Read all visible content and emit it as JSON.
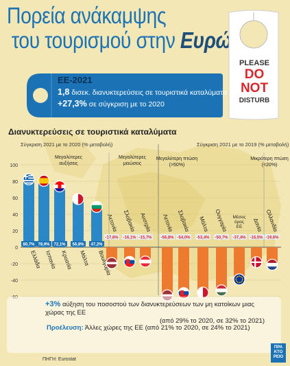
{
  "title": {
    "line1": "Πορεία ανάκαμψης",
    "line2_a": "του τουρισμού στην",
    "line2_b": "Ευρώπη"
  },
  "door_hanger": {
    "please": "PLEASE",
    "do": "DO",
    "not": "NOT",
    "disturb": "DISTURB"
  },
  "eu_box": {
    "title": "ΕΕ-2021",
    "line1_value": "1,8",
    "line1_text": "δισεκ. διανυκτερεύσεις σε τουριστικά καταλύματα",
    "line2_value": "+27,3%",
    "line2_text": "σε σύγκριση με το 2020"
  },
  "section_title": "Διανυκτερεύσεις σε τουριστικά καταλύματα",
  "subtitle_left": "Σύγκριση 2021 με το 2020 (% μεταβολή)",
  "subtitle_right": "Σύγκριση 2021 με το 2019 (% μεταβολή)",
  "colors": {
    "positive": "#2a87c8",
    "negative": "#ee7a2f",
    "title": "#1b73b5"
  },
  "chart_data": {
    "type": "bar",
    "ylim": [
      -70,
      110
    ],
    "yticks": [
      100,
      80,
      60,
      40,
      20,
      0,
      -20,
      -40,
      -60
    ],
    "groups": [
      {
        "label": "Μεγαλύτερες αυξήσεις",
        "comparison": "2021 vs 2020"
      },
      {
        "label": "Μεγαλύτερες μειώσεις",
        "comparison": "2021 vs 2020"
      },
      {
        "label": "Μεγαλύτερη πτώση (>50%)",
        "comparison": "2021 vs 2019"
      },
      {
        "label": "Μικρότερη πτώση (<20%)",
        "comparison": "2021 vs 2019"
      }
    ],
    "bars": [
      {
        "country": "Ελλάδα",
        "value": 80.7,
        "label": "80,7%",
        "flag": "greece",
        "group": 0
      },
      {
        "country": "Ισπανία",
        "value": 78.9,
        "label": "78,9%",
        "flag": "spain",
        "group": 0
      },
      {
        "country": "Κροατία",
        "value": 72.1,
        "label": "72,1%",
        "flag": "croatia",
        "group": 0
      },
      {
        "country": "Μάλτα",
        "value": 56.8,
        "label": "56,8%",
        "flag": "malta",
        "group": 0
      },
      {
        "country": "Βουλγαρία",
        "value": 47.2,
        "label": "47,2%",
        "flag": "bulgaria",
        "group": 0
      },
      {
        "country": "Λετονία",
        "value": -17.6,
        "label": "-17,6%",
        "flag": "latvia",
        "group": 1
      },
      {
        "country": "Σλοβακία",
        "value": -16.1,
        "label": "-16,1%",
        "flag": "slovakia",
        "group": 1
      },
      {
        "country": "Αυστρία",
        "value": -15.7,
        "label": "-15,7%",
        "flag": "austria",
        "group": 1
      },
      {
        "country": "Λετονία",
        "value": -56.8,
        "label": "-56,8%",
        "flag": "latvia",
        "group": 2
      },
      {
        "country": "Σλοβακία",
        "value": -54.0,
        "label": "-54,0%",
        "flag": "slovakia",
        "group": 2
      },
      {
        "country": "Μάλτα",
        "value": -53.4,
        "label": "-53,4%",
        "flag": "malta",
        "group": 2
      },
      {
        "country": "Ουγγαρία",
        "value": -50.7,
        "label": "-50,7%",
        "flag": "hungary",
        "group": 2
      },
      {
        "country": "Μέσος όρος ΕΕ",
        "value": -37.4,
        "label": "-37,4%",
        "flag": "eu",
        "group": 2
      },
      {
        "country": "Δανία",
        "value": -16.5,
        "label": "-16,5%",
        "flag": "denmark",
        "group": 3
      },
      {
        "country": "Ολλανδία",
        "value": -19.6,
        "label": "-19,6%",
        "flag": "netherlands",
        "group": 3
      }
    ]
  },
  "notes": {
    "n1_value": "+3%",
    "n1_text": "αύξηση του ποσοστού των διανυκτερεύσεων των μη κατοίκων μιας χώρας της ΕΕ",
    "n1_line2": "(από 29% το 2020, σε 32% το 2021)",
    "n2_label": "Προέλευση:",
    "n2_text": "Άλλες χώρες της ΕΕ (από 21% το 2020, σε 24% το 2021)"
  },
  "source": "ΠΗΓΗ: Eurostat",
  "logo": {
    "l1": "ΠΡΑ",
    "l2": "ΚΤΟ",
    "l3": "ΡΕΙΟ"
  }
}
